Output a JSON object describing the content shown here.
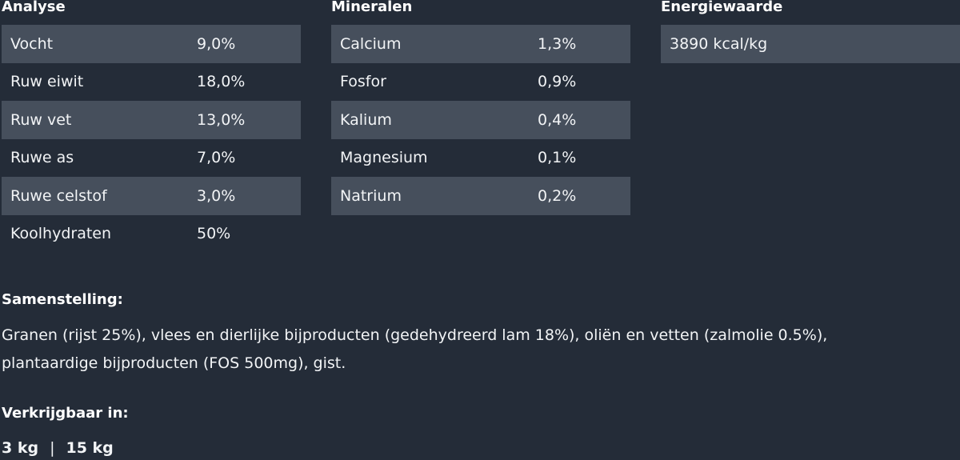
{
  "analyse": {
    "title": "Analyse",
    "rows": [
      {
        "label": "Vocht",
        "value": "9,0%"
      },
      {
        "label": "Ruw eiwit",
        "value": "18,0%"
      },
      {
        "label": "Ruw vet",
        "value": "13,0%"
      },
      {
        "label": "Ruwe as",
        "value": "7,0%"
      },
      {
        "label": "Ruwe celstof",
        "value": "3,0%"
      },
      {
        "label": "Koolhydraten",
        "value": "50%"
      }
    ]
  },
  "mineralen": {
    "title": "Mineralen",
    "rows": [
      {
        "label": "Calcium",
        "value": "1,3%"
      },
      {
        "label": "Fosfor",
        "value": "0,9%"
      },
      {
        "label": "Kalium",
        "value": "0,4%"
      },
      {
        "label": "Magnesium",
        "value": "0,1%"
      },
      {
        "label": "Natrium",
        "value": "0,2%"
      }
    ]
  },
  "energie": {
    "title": "Energiewaarde",
    "value": "3890 kcal/kg"
  },
  "samenstelling": {
    "title": "Samenstelling:",
    "text": "Granen (rijst 25%), vlees en dierlijke bijproducten (gedehydreerd lam 18%), oliën en vetten (zalmolie 0.5%), plantaardige bijproducten (FOS 500mg), gist."
  },
  "verkrijgbaar": {
    "title": "Verkrijgbaar in:",
    "sizes": [
      "3 kg",
      "15 kg"
    ],
    "separator": "|"
  }
}
